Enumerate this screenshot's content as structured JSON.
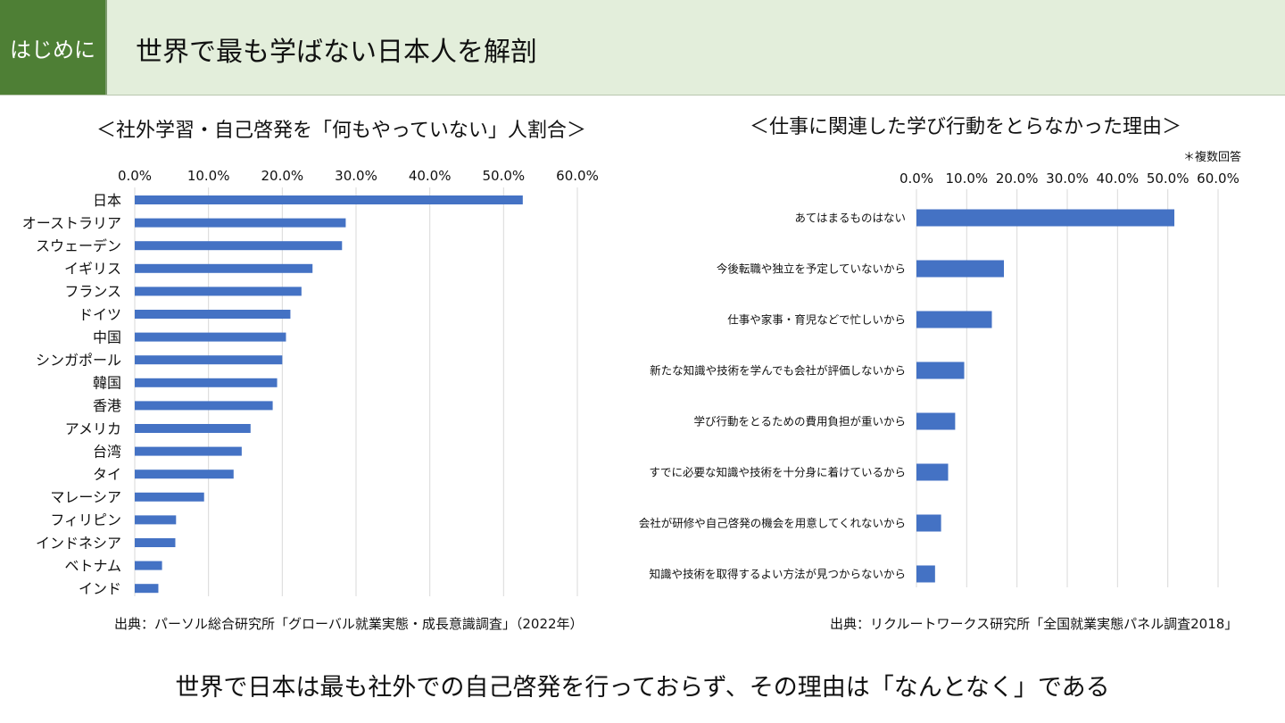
{
  "header": {
    "tag": "はじめに",
    "title": "世界で最も学ばない日本人を解剖"
  },
  "conclusion": "世界で日本は最も社外での自己啓発を行っておらず、その理由は「なんとなく」である",
  "colors": {
    "bar": "#4472c4",
    "header_bg": "#e3eedb",
    "tag_bg": "#4e7f35"
  },
  "chart_data": [
    {
      "type": "bar",
      "orientation": "horizontal",
      "title": "＜社外学習・自己啓発を「何もやっていない」人割合＞",
      "source": "出典：パーソル総合研究所「グローバル就業実態・成長意識調査」（2022年）",
      "xlim": [
        0,
        60
      ],
      "ticks": [
        "0.0%",
        "10.0%",
        "20.0%",
        "30.0%",
        "40.0%",
        "50.0%",
        "60.0%"
      ],
      "categories": [
        "日本",
        "オーストラリア",
        "スウェーデン",
        "イギリス",
        "フランス",
        "ドイツ",
        "中国",
        "シンガポール",
        "韓国",
        "香港",
        "アメリカ",
        "台湾",
        "タイ",
        "マレーシア",
        "フィリピン",
        "インドネシア",
        "ベトナム",
        "インド"
      ],
      "values": [
        52.6,
        28.6,
        28.1,
        24.1,
        22.6,
        21.1,
        20.5,
        20.0,
        19.3,
        18.7,
        15.7,
        14.5,
        13.4,
        9.4,
        5.6,
        5.5,
        3.7,
        3.2
      ],
      "grid": true
    },
    {
      "type": "bar",
      "orientation": "horizontal",
      "title": "＜仕事に関連した学び行動をとらなかった理由＞",
      "note": "＊複数回答",
      "source": "出典：リクルートワークス研究所「全国就業実態パネル調査2018」",
      "xlim": [
        0,
        60
      ],
      "ticks": [
        "0.0%",
        "10.0%",
        "20.0%",
        "30.0%",
        "40.0%",
        "50.0%",
        "60.0%"
      ],
      "categories": [
        "あてはまるものはない",
        "今後転職や独立を予定していないから",
        "仕事や家事・育児などで忙しいから",
        "新たな知識や技術を学んでも会社が評価しないから",
        "学び行動をとるための費用負担が重いから",
        "すでに必要な知識や技術を十分身に着けているから",
        "会社が研修や自己啓発の機会を用意してくれないから",
        "知識や技術を取得するよい方法が見つからないから"
      ],
      "values": [
        51.3,
        17.4,
        15.0,
        9.5,
        7.7,
        6.3,
        4.9,
        3.7
      ],
      "grid": true
    }
  ]
}
